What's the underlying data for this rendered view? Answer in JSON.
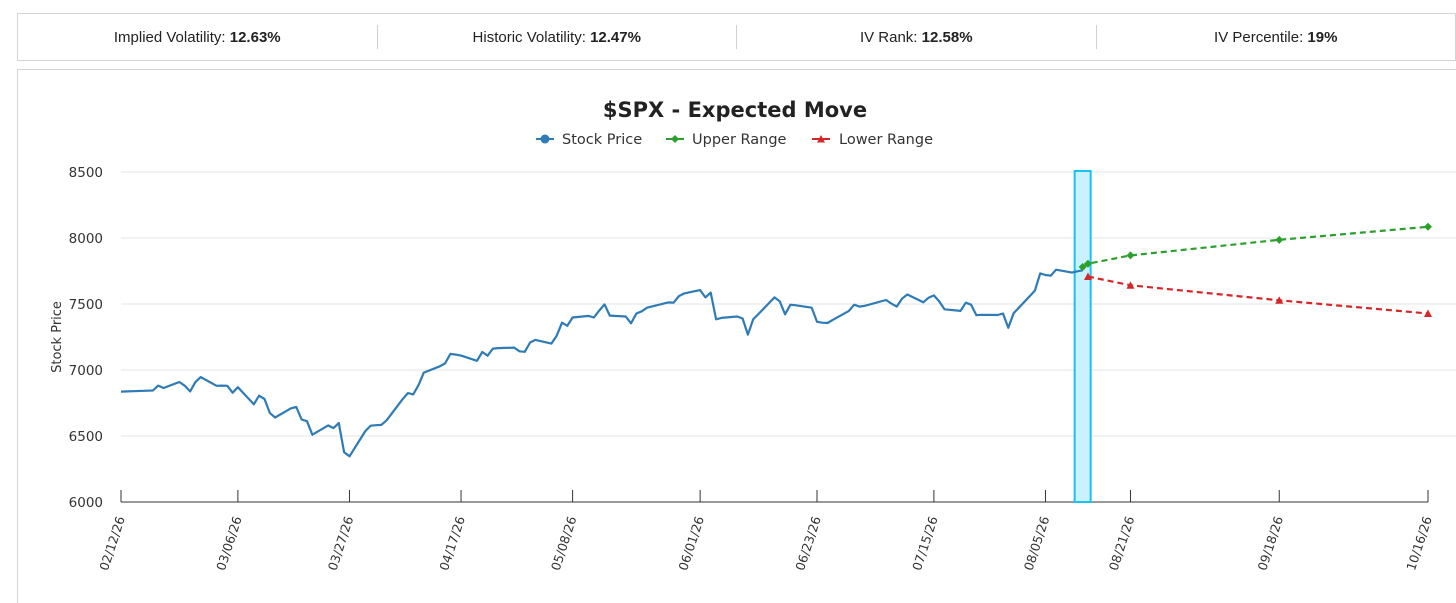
{
  "stats": [
    {
      "label": "Implied Volatility:",
      "value": "12.63%"
    },
    {
      "label": "Historic Volatility:",
      "value": "12.47%"
    },
    {
      "label": "IV Rank:",
      "value": "12.58%"
    },
    {
      "label": "IV Percentile:",
      "value": "19%"
    }
  ],
  "colors": {
    "stock": "#2e7bb6",
    "upper": "#2ca02c",
    "lower": "#d62728",
    "highlight_fill": "#c9f1ff",
    "highlight_stroke": "#18c3f0"
  },
  "chart_data": {
    "type": "line",
    "title": "$SPX - Expected Move",
    "ylabel": "Stock Price",
    "ylim": [
      6000,
      8500
    ],
    "yticks": [
      6000,
      6500,
      7000,
      7500,
      8000,
      8500
    ],
    "xtick_labels": [
      "02/12/26",
      "03/06/26",
      "03/27/26",
      "04/17/26",
      "05/08/26",
      "06/01/26",
      "06/23/26",
      "07/15/26",
      "08/05/26",
      "08/21/26",
      "09/18/26",
      "10/16/26"
    ],
    "legend": [
      "Stock Price",
      "Upper Range",
      "Lower Range"
    ],
    "highlight_date": "08/12/26",
    "series": [
      {
        "name": "Stock Price",
        "marker": "circle",
        "points": [
          [
            "02/12/26",
            6836
          ],
          [
            "02/17/26",
            6843
          ],
          [
            "02/18/26",
            6845
          ],
          [
            "02/19/26",
            6882
          ],
          [
            "02/20/26",
            6864
          ],
          [
            "02/23/26",
            6909
          ],
          [
            "02/24/26",
            6880
          ],
          [
            "02/25/26",
            6838
          ],
          [
            "02/26/26",
            6908
          ],
          [
            "02/27/26",
            6946
          ],
          [
            "03/02/26",
            6880
          ],
          [
            "03/03/26",
            6882
          ],
          [
            "03/04/26",
            6880
          ],
          [
            "03/05/26",
            6828
          ],
          [
            "03/06/26",
            6870
          ],
          [
            "03/09/26",
            6740
          ],
          [
            "03/10/26",
            6805
          ],
          [
            "03/11/26",
            6780
          ],
          [
            "03/12/26",
            6675
          ],
          [
            "03/13/26",
            6640
          ],
          [
            "03/16/26",
            6710
          ],
          [
            "03/17/26",
            6720
          ],
          [
            "03/18/26",
            6625
          ],
          [
            "03/19/26",
            6612
          ],
          [
            "03/20/26",
            6510
          ],
          [
            "03/23/26",
            6580
          ],
          [
            "03/24/26",
            6560
          ],
          [
            "03/25/26",
            6598
          ],
          [
            "03/26/26",
            6377
          ],
          [
            "03/27/26",
            6346
          ],
          [
            "03/30/26",
            6538
          ],
          [
            "03/31/26",
            6578
          ],
          [
            "04/01/26",
            6582
          ],
          [
            "04/02/26",
            6584
          ],
          [
            "04/03/26",
            6620
          ],
          [
            "04/06/26",
            6779
          ],
          [
            "04/07/26",
            6825
          ],
          [
            "04/08/26",
            6815
          ],
          [
            "04/09/26",
            6885
          ],
          [
            "04/10/26",
            6980
          ],
          [
            "04/13/26",
            7028
          ],
          [
            "04/14/26",
            7050
          ],
          [
            "04/15/26",
            7122
          ],
          [
            "04/16/26",
            7117
          ],
          [
            "04/17/26",
            7109
          ],
          [
            "04/20/26",
            7070
          ],
          [
            "04/21/26",
            7136
          ],
          [
            "04/22/26",
            7108
          ],
          [
            "04/23/26",
            7162
          ],
          [
            "04/24/26",
            7166
          ],
          [
            "04/27/26",
            7170
          ],
          [
            "04/28/26",
            7142
          ],
          [
            "04/29/26",
            7138
          ],
          [
            "04/30/26",
            7208
          ],
          [
            "05/01/26",
            7228
          ],
          [
            "05/04/26",
            7200
          ],
          [
            "05/05/26",
            7260
          ],
          [
            "05/06/26",
            7358
          ],
          [
            "05/07/26",
            7335
          ],
          [
            "05/08/26",
            7398
          ],
          [
            "05/11/26",
            7410
          ],
          [
            "05/12/26",
            7398
          ],
          [
            "05/13/26",
            7450
          ],
          [
            "05/14/26",
            7497
          ],
          [
            "05/15/26",
            7412
          ],
          [
            "05/18/26",
            7405
          ],
          [
            "05/19/26",
            7354
          ],
          [
            "05/20/26",
            7428
          ],
          [
            "05/21/26",
            7445
          ],
          [
            "05/22/26",
            7472
          ],
          [
            "05/26/26",
            7512
          ],
          [
            "05/27/26",
            7510
          ],
          [
            "05/28/26",
            7560
          ],
          [
            "05/29/26",
            7580
          ],
          [
            "06/01/26",
            7605
          ],
          [
            "06/02/26",
            7550
          ],
          [
            "06/03/26",
            7586
          ],
          [
            "06/04/26",
            7384
          ],
          [
            "06/05/26",
            7395
          ],
          [
            "06/08/26",
            7405
          ],
          [
            "06/09/26",
            7390
          ],
          [
            "06/10/26",
            7268
          ],
          [
            "06/11/26",
            7384
          ],
          [
            "06/12/26",
            7425
          ],
          [
            "06/15/26",
            7550
          ],
          [
            "06/16/26",
            7520
          ],
          [
            "06/17/26",
            7422
          ],
          [
            "06/18/26",
            7495
          ],
          [
            "06/19/26",
            7490
          ],
          [
            "06/22/26",
            7472
          ],
          [
            "06/23/26",
            7365
          ],
          [
            "06/24/26",
            7358
          ],
          [
            "06/25/26",
            7356
          ],
          [
            "06/26/26",
            7380
          ],
          [
            "06/29/26",
            7448
          ],
          [
            "06/30/26",
            7495
          ],
          [
            "07/01/26",
            7480
          ],
          [
            "07/02/26",
            7486
          ],
          [
            "07/06/26",
            7530
          ],
          [
            "07/07/26",
            7503
          ],
          [
            "07/08/26",
            7480
          ],
          [
            "07/09/26",
            7540
          ],
          [
            "07/10/26",
            7572
          ],
          [
            "07/13/26",
            7513
          ],
          [
            "07/14/26",
            7548
          ],
          [
            "07/15/26",
            7565
          ],
          [
            "07/16/26",
            7520
          ],
          [
            "07/17/26",
            7460
          ],
          [
            "07/20/26",
            7448
          ],
          [
            "07/21/26",
            7510
          ],
          [
            "07/22/26",
            7495
          ],
          [
            "07/23/26",
            7415
          ],
          [
            "07/24/26",
            7418
          ],
          [
            "07/27/26",
            7417
          ],
          [
            "07/28/26",
            7428
          ],
          [
            "07/29/26",
            7320
          ],
          [
            "07/30/26",
            7430
          ],
          [
            "07/31/26",
            7472
          ],
          [
            "08/03/26",
            7600
          ],
          [
            "08/04/26",
            7732
          ],
          [
            "08/05/26",
            7720
          ],
          [
            "08/06/26",
            7715
          ],
          [
            "08/07/26",
            7760
          ],
          [
            "08/10/26",
            7738
          ],
          [
            "08/11/26",
            7748
          ],
          [
            "08/12/26",
            7755
          ]
        ]
      },
      {
        "name": "Upper Range",
        "marker": "diamond",
        "points": [
          [
            "08/12/26",
            7780
          ],
          [
            "08/13/26",
            7805
          ],
          [
            "08/21/26",
            7868
          ],
          [
            "09/18/26",
            7986
          ],
          [
            "10/16/26",
            8085
          ]
        ]
      },
      {
        "name": "Lower Range",
        "marker": "triangle",
        "points": [
          [
            "08/13/26",
            7708
          ],
          [
            "08/21/26",
            7642
          ],
          [
            "09/18/26",
            7528
          ],
          [
            "10/16/26",
            7428
          ]
        ]
      }
    ]
  }
}
